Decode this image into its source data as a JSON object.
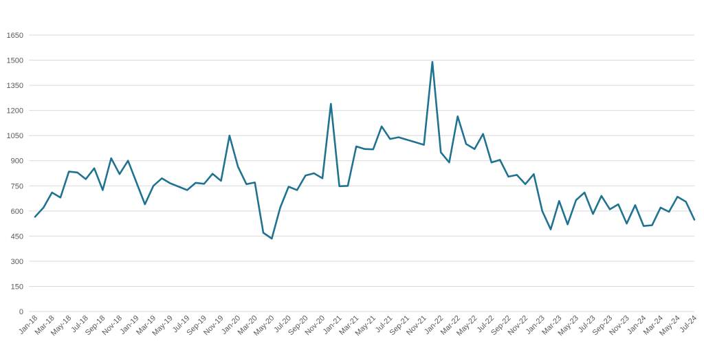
{
  "chart_data": {
    "type": "line",
    "title": "",
    "xlabel": "",
    "ylabel": "",
    "ylim": [
      0,
      1650
    ],
    "yticks": [
      0,
      150,
      300,
      450,
      600,
      750,
      900,
      1050,
      1200,
      1350,
      1500,
      1650
    ],
    "grid": true,
    "legend": "none",
    "color": "#1f7391",
    "x": [
      "Jan-18",
      "Feb-18",
      "Mar-18",
      "Apr-18",
      "May-18",
      "Jun-18",
      "Jul-18",
      "Aug-18",
      "Sep-18",
      "Oct-18",
      "Nov-18",
      "Dec-18",
      "Jan-19",
      "Feb-19",
      "Mar-19",
      "Apr-19",
      "May-19",
      "Jun-19",
      "Jul-19",
      "Aug-19",
      "Sep-19",
      "Oct-19",
      "Nov-19",
      "Dec-19",
      "Jan-20",
      "Feb-20",
      "Mar-20",
      "Apr-20",
      "May-20",
      "Jun-20",
      "Jul-20",
      "Aug-20",
      "Sep-20",
      "Oct-20",
      "Nov-20",
      "Dec-20",
      "Jan-21",
      "Feb-21",
      "Mar-21",
      "Apr-21",
      "May-21",
      "Jun-21",
      "Jul-21",
      "Aug-21",
      "Sep-21",
      "Oct-21",
      "Nov-21",
      "Dec-21",
      "Jan-22",
      "Feb-22",
      "Mar-22",
      "Apr-22",
      "May-22",
      "Jun-22",
      "Jul-22",
      "Aug-22",
      "Sep-22",
      "Oct-22",
      "Nov-22",
      "Dec-22",
      "Jan-23",
      "Feb-23",
      "Mar-23",
      "Apr-23",
      "May-23",
      "Jun-23",
      "Jul-23",
      "Aug-23",
      "Sep-23",
      "Oct-23",
      "Nov-23",
      "Dec-23",
      "Jan-24",
      "Feb-24",
      "Mar-24",
      "Apr-24",
      "May-24",
      "Jun-24",
      "Jul-24"
    ],
    "x_tick_labels": [
      "Jan-18",
      "Mar-18",
      "May-18",
      "Jul-18",
      "Sep-18",
      "Nov-18",
      "Jan-19",
      "Mar-19",
      "May-19",
      "Jul-19",
      "Sep-19",
      "Nov-19",
      "Jan-20",
      "Mar-20",
      "May-20",
      "Jul-20",
      "Sep-20",
      "Nov-20",
      "Jan-21",
      "Mar-21",
      "May-21",
      "Jul-21",
      "Sep-21",
      "Nov-21",
      "Jan-22",
      "Mar-22",
      "May-22",
      "Jul-22",
      "Sep-22",
      "Nov-22",
      "Jan-23",
      "Mar-23",
      "May-23",
      "Jul-23",
      "Sep-23",
      "Nov-23",
      "Jan-24",
      "Mar-24",
      "May-24",
      "Jul-24"
    ],
    "series": [
      {
        "values": [
          565,
          620,
          710,
          680,
          835,
          830,
          790,
          855,
          725,
          915,
          820,
          900,
          770,
          640,
          750,
          795,
          765,
          745,
          725,
          768,
          762,
          822,
          780,
          1050,
          865,
          760,
          770,
          470,
          435,
          620,
          745,
          725,
          812,
          825,
          795,
          1240,
          748,
          750,
          985,
          970,
          968,
          1105,
          1030,
          1040,
          1025,
          1010,
          995,
          1490,
          950,
          890,
          1165,
          1000,
          970,
          1060,
          890,
          905,
          805,
          815,
          760,
          820,
          600,
          490,
          660,
          520,
          665,
          710,
          582,
          690,
          610,
          640,
          525,
          635,
          510,
          515,
          620,
          595,
          685,
          655,
          548
        ]
      }
    ]
  }
}
